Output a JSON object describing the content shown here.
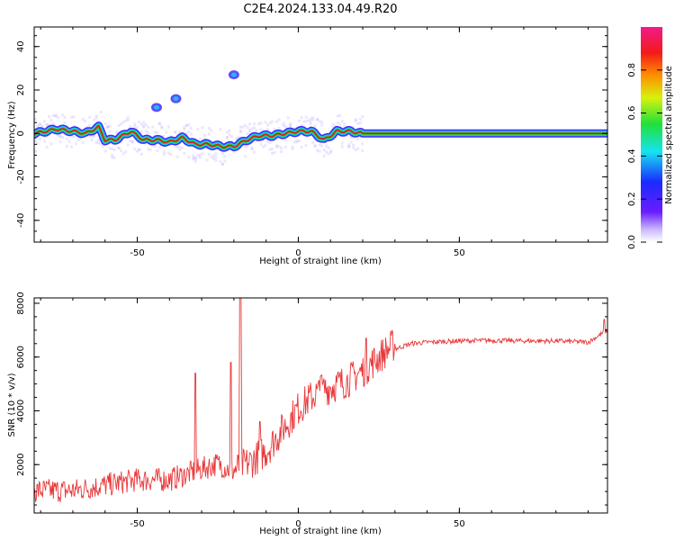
{
  "figure": {
    "title": "C2E4.2024.133.04.49.R20"
  },
  "colors": {
    "snr_line": "#e8383a",
    "ridge_core": "#e8102a",
    "ridge_mid": "#1dd92a",
    "halo": "#2a10ff",
    "faint": "#c9b6ff"
  },
  "chart_data": [
    {
      "type": "heatmap",
      "xlabel": "Height of straight line (km)",
      "ylabel": "Frequency (Hz)",
      "xlim": [
        -82,
        96
      ],
      "ylim": [
        -50,
        49
      ],
      "xticks": [
        -50,
        0,
        50
      ],
      "yticks": [
        -40,
        -20,
        0,
        20,
        40
      ],
      "colorbar": {
        "label": "Normalized spectral amplitude",
        "range": [
          0,
          1
        ],
        "ticks": [
          "0.0",
          "0.2",
          "0.4",
          "0.6",
          "0.8"
        ],
        "colormap": "rainbow (white-violet-blue-cyan-green-yellow-red-pink)"
      },
      "ridge": {
        "description": "dominant Doppler frequency vs height",
        "x": [
          -82,
          -75,
          -70,
          -66,
          -62,
          -60,
          -57,
          -52,
          -48,
          -44,
          -40,
          -36,
          -32,
          -28,
          -24,
          -20,
          -16,
          -12,
          -8,
          -4,
          0,
          4,
          8,
          12,
          16,
          20,
          96
        ],
        "y": [
          0,
          2,
          1,
          0,
          3,
          -3,
          -3,
          1,
          -3,
          -3,
          -4,
          -2,
          -5,
          -5,
          -6,
          -6,
          -3,
          -1,
          -1,
          0,
          1,
          1,
          -3,
          1,
          1,
          0,
          0
        ],
        "faint_features": [
          {
            "x": -44,
            "y": 12
          },
          {
            "x": -20,
            "y": 27
          },
          {
            "x": -38,
            "y": 16
          }
        ]
      }
    },
    {
      "type": "line",
      "xlabel": "Height of straight line (km)",
      "ylabel": "SNR (10 * v/v)",
      "xlim": [
        -82,
        96
      ],
      "ylim": [
        200,
        8200
      ],
      "xticks": [
        -50,
        0,
        50
      ],
      "yticks": [
        2000,
        4000,
        6000,
        8000
      ],
      "series": [
        {
          "envelope_x": [
            -82,
            -70,
            -60,
            -50,
            -40,
            -35,
            -30,
            -25,
            -20,
            -15,
            -10,
            -5,
            0,
            5,
            10,
            15,
            20,
            25,
            30,
            35,
            40,
            50,
            60,
            70,
            80,
            90,
            96
          ],
          "envelope_y": [
            900,
            900,
            1100,
            1300,
            1300,
            1500,
            1700,
            1900,
            1600,
            1900,
            2300,
            3100,
            3900,
            4400,
            4700,
            4900,
            5300,
            5800,
            6300,
            6500,
            6550,
            6600,
            6620,
            6600,
            6600,
            6550,
            7000
          ],
          "spikes": [
            {
              "x": -32,
              "y": 5400
            },
            {
              "x": -21,
              "y": 5800
            },
            {
              "x": -18,
              "y": 8200
            },
            {
              "x": -12,
              "y": 3600
            },
            {
              "x": 7,
              "y": 5300
            },
            {
              "x": 21,
              "y": 6700
            },
            {
              "x": 95,
              "y": 7400
            }
          ]
        }
      ]
    }
  ]
}
